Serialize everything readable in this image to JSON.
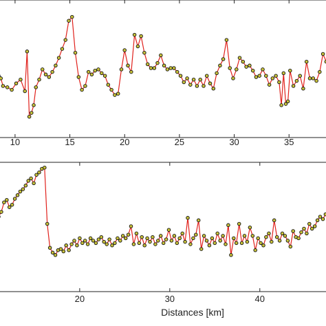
{
  "chart_data": [
    {
      "type": "line",
      "xlim": [
        8.5,
        38.5
      ],
      "ylim": [
        0,
        1
      ],
      "xticks": [
        10,
        15,
        20,
        25,
        30,
        35
      ],
      "xtick_labels": [
        "10",
        "15",
        "20",
        "25",
        "30",
        "35"
      ],
      "grid": false,
      "line_color": "#e0201b",
      "marker_color": "#c9c23a",
      "x": [
        8.5,
        8.7,
        8.9,
        9.3,
        9.7,
        10.1,
        10.5,
        10.9,
        11.1,
        11.3,
        11.5,
        11.7,
        11.9,
        12.2,
        12.5,
        12.8,
        13.1,
        13.4,
        13.7,
        14.0,
        14.3,
        14.6,
        14.9,
        15.2,
        15.5,
        15.8,
        16.1,
        16.4,
        16.7,
        17.0,
        17.3,
        17.6,
        17.9,
        18.2,
        18.5,
        18.8,
        19.1,
        19.4,
        19.7,
        20.0,
        20.3,
        20.6,
        20.9,
        21.2,
        21.5,
        21.8,
        22.1,
        22.4,
        22.7,
        23.0,
        23.3,
        23.6,
        23.9,
        24.2,
        24.5,
        24.8,
        25.1,
        25.4,
        25.7,
        26.0,
        26.3,
        26.6,
        26.9,
        27.2,
        27.5,
        27.8,
        28.1,
        28.4,
        28.7,
        29.0,
        29.3,
        29.6,
        29.9,
        30.2,
        30.5,
        30.8,
        31.1,
        31.4,
        31.7,
        32.0,
        32.3,
        32.6,
        32.9,
        33.2,
        33.5,
        33.8,
        34.1,
        34.3,
        34.5,
        34.7,
        34.9,
        35.1,
        35.4,
        35.7,
        36.0,
        36.3,
        36.6,
        36.9,
        37.2,
        37.5,
        37.8,
        38.1,
        38.4
      ],
      "y": [
        0.44,
        0.42,
        0.36,
        0.35,
        0.33,
        0.38,
        0.41,
        0.32,
        0.63,
        0.12,
        0.15,
        0.21,
        0.35,
        0.41,
        0.49,
        0.45,
        0.43,
        0.47,
        0.52,
        0.58,
        0.65,
        0.72,
        0.87,
        0.9,
        0.62,
        0.43,
        0.33,
        0.36,
        0.47,
        0.45,
        0.48,
        0.49,
        0.46,
        0.44,
        0.37,
        0.33,
        0.29,
        0.3,
        0.49,
        0.64,
        0.52,
        0.47,
        0.76,
        0.67,
        0.75,
        0.62,
        0.53,
        0.5,
        0.5,
        0.54,
        0.6,
        0.52,
        0.49,
        0.5,
        0.5,
        0.47,
        0.44,
        0.39,
        0.42,
        0.37,
        0.41,
        0.36,
        0.41,
        0.36,
        0.44,
        0.38,
        0.34,
        0.46,
        0.52,
        0.57,
        0.72,
        0.5,
        0.42,
        0.49,
        0.58,
        0.55,
        0.51,
        0.52,
        0.48,
        0.43,
        0.44,
        0.49,
        0.44,
        0.37,
        0.42,
        0.44,
        0.39,
        0.21,
        0.46,
        0.22,
        0.24,
        0.48,
        0.36,
        0.4,
        0.44,
        0.34,
        0.55,
        0.42,
        0.42,
        0.4,
        0.47,
        0.61,
        0.55
      ]
    },
    {
      "type": "line",
      "xlim": [
        11,
        47.5
      ],
      "ylim": [
        0,
        1
      ],
      "xticks": [
        20,
        30,
        40
      ],
      "xtick_labels": [
        "20",
        "30",
        "40"
      ],
      "xlabel": "Distances [km]",
      "grid": false,
      "line_color": "#e0201b",
      "marker_color": "#c9c23a",
      "x": [
        11.0,
        11.3,
        11.6,
        11.9,
        12.2,
        12.5,
        12.8,
        13.1,
        13.4,
        13.7,
        14.0,
        14.3,
        14.6,
        14.9,
        15.2,
        15.5,
        15.8,
        16.1,
        16.4,
        16.7,
        17.0,
        17.3,
        17.6,
        17.9,
        18.2,
        18.5,
        18.8,
        19.1,
        19.4,
        19.7,
        20.0,
        20.3,
        20.6,
        20.9,
        21.2,
        21.5,
        21.8,
        22.1,
        22.4,
        22.7,
        23.0,
        23.3,
        23.6,
        23.9,
        24.2,
        24.5,
        24.8,
        25.1,
        25.4,
        25.7,
        26.0,
        26.3,
        26.6,
        26.9,
        27.2,
        27.5,
        27.8,
        28.1,
        28.4,
        28.7,
        29.0,
        29.3,
        29.6,
        29.9,
        30.2,
        30.5,
        30.8,
        31.1,
        31.4,
        31.7,
        32.0,
        32.3,
        32.6,
        32.9,
        33.2,
        33.5,
        33.8,
        34.1,
        34.4,
        34.7,
        35.0,
        35.3,
        35.6,
        35.9,
        36.2,
        36.5,
        36.8,
        37.1,
        37.4,
        37.7,
        38.0,
        38.3,
        38.6,
        38.9,
        39.2,
        39.5,
        39.8,
        40.1,
        40.4,
        40.7,
        41.0,
        41.3,
        41.6,
        41.9,
        42.2,
        42.5,
        42.8,
        43.1,
        43.4,
        43.7,
        44.0,
        44.3,
        44.6,
        44.9,
        45.2,
        45.5,
        45.8,
        46.1,
        46.4,
        46.7,
        47.0,
        47.3
      ],
      "y": [
        0.58,
        0.62,
        0.7,
        0.72,
        0.66,
        0.68,
        0.73,
        0.76,
        0.79,
        0.81,
        0.84,
        0.88,
        0.9,
        0.86,
        0.93,
        0.95,
        0.98,
        0.99,
        0.52,
        0.32,
        0.28,
        0.26,
        0.3,
        0.31,
        0.29,
        0.34,
        0.3,
        0.35,
        0.38,
        0.34,
        0.4,
        0.36,
        0.38,
        0.35,
        0.4,
        0.38,
        0.36,
        0.39,
        0.41,
        0.37,
        0.35,
        0.39,
        0.34,
        0.36,
        0.4,
        0.38,
        0.42,
        0.4,
        0.43,
        0.5,
        0.35,
        0.44,
        0.36,
        0.41,
        0.34,
        0.4,
        0.37,
        0.41,
        0.35,
        0.38,
        0.42,
        0.36,
        0.39,
        0.47,
        0.38,
        0.42,
        0.36,
        0.4,
        0.44,
        0.37,
        0.57,
        0.35,
        0.4,
        0.43,
        0.55,
        0.31,
        0.42,
        0.38,
        0.34,
        0.4,
        0.36,
        0.44,
        0.38,
        0.42,
        0.35,
        0.51,
        0.26,
        0.4,
        0.36,
        0.52,
        0.36,
        0.42,
        0.37,
        0.49,
        0.42,
        0.3,
        0.4,
        0.36,
        0.34,
        0.41,
        0.44,
        0.37,
        0.55,
        0.41,
        0.38,
        0.44,
        0.42,
        0.38,
        0.33,
        0.46,
        0.41,
        0.4,
        0.45,
        0.48,
        0.44,
        0.52,
        0.48,
        0.5,
        0.55,
        0.58,
        0.56,
        0.6
      ]
    }
  ]
}
